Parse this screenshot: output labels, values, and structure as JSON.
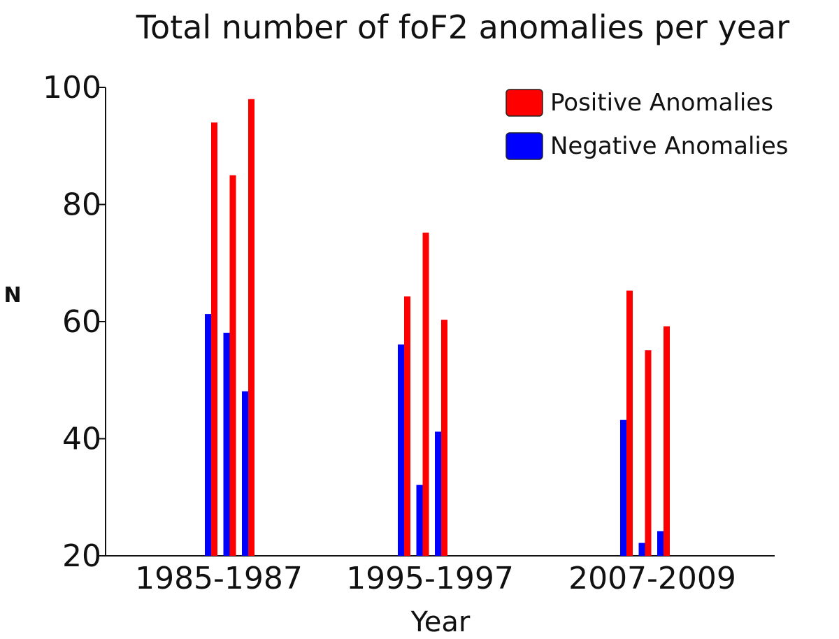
{
  "chart_data": {
    "type": "bar",
    "title": "Total number of foF2 anomalies per year",
    "xlabel": "Year",
    "ylabel": "N",
    "ylim": [
      20,
      100
    ],
    "yticks": [
      20,
      40,
      60,
      80,
      100
    ],
    "grid": false,
    "legend_position": "top-right",
    "categories": [
      "1985-1987",
      "1995-1997",
      "2007-2009"
    ],
    "series": [
      {
        "name": "Positive Anomalies",
        "color": "#ff0000",
        "values": [
          [
            94,
            85,
            98
          ],
          [
            64.3,
            75.2,
            60.3
          ],
          [
            65.3,
            55.1,
            59.2
          ]
        ]
      },
      {
        "name": "Negative Anomalies",
        "color": "#0000ff",
        "values": [
          [
            61.3,
            58.1,
            48.1
          ],
          [
            56.1,
            32.1,
            41.2
          ],
          [
            43.2,
            22.2,
            24.2
          ]
        ]
      }
    ]
  }
}
